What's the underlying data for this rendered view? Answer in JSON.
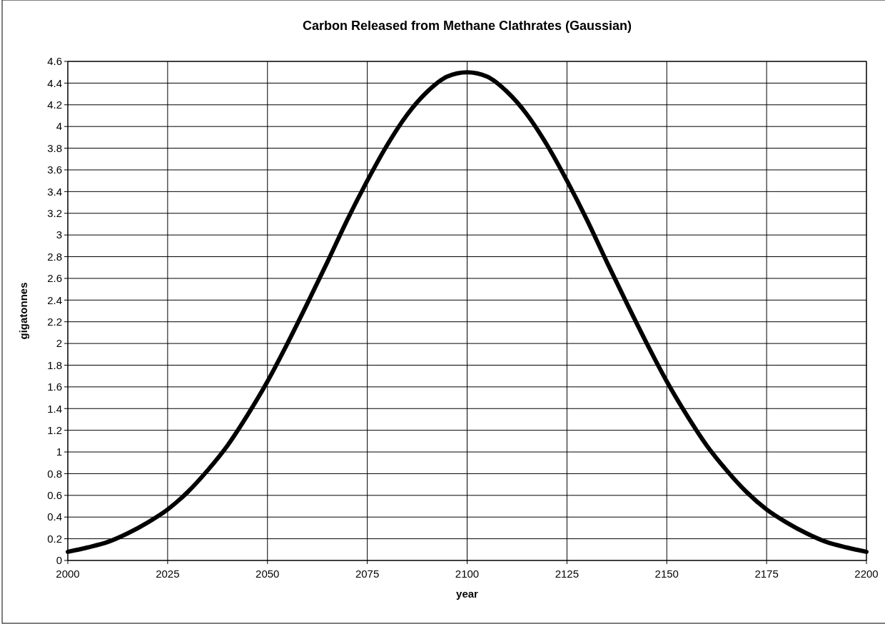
{
  "chart_data": {
    "type": "line",
    "title": "Carbon Released from Methane Clathrates (Gaussian)",
    "xlabel": "year",
    "ylabel": "gigatonnes",
    "x": [
      2000,
      2005,
      2010,
      2015,
      2020,
      2025,
      2030,
      2035,
      2040,
      2045,
      2050,
      2055,
      2060,
      2065,
      2070,
      2075,
      2080,
      2085,
      2090,
      2095,
      2100,
      2105,
      2110,
      2115,
      2120,
      2125,
      2130,
      2135,
      2140,
      2145,
      2150,
      2155,
      2160,
      2165,
      2170,
      2175,
      2180,
      2185,
      2190,
      2195,
      2200
    ],
    "series": [
      {
        "color": "#000000",
        "values": [
          0.08,
          0.12,
          0.17,
          0.25,
          0.35,
          0.47,
          0.63,
          0.83,
          1.06,
          1.34,
          1.65,
          2.0,
          2.37,
          2.75,
          3.14,
          3.5,
          3.83,
          4.11,
          4.32,
          4.46,
          4.5,
          4.46,
          4.32,
          4.11,
          3.83,
          3.5,
          3.14,
          2.75,
          2.37,
          2.0,
          1.65,
          1.34,
          1.06,
          0.83,
          0.63,
          0.47,
          0.35,
          0.25,
          0.17,
          0.12,
          0.08
        ]
      }
    ],
    "xlim": [
      2000,
      2200
    ],
    "xticks": [
      2000,
      2025,
      2050,
      2075,
      2100,
      2125,
      2150,
      2175,
      2200
    ],
    "ylim": [
      0,
      4.6
    ],
    "yticks": [
      0,
      0.2,
      0.4,
      0.6,
      0.8,
      1,
      1.2,
      1.4,
      1.6,
      1.8,
      2,
      2.2,
      2.4,
      2.6,
      2.8,
      3,
      3.2,
      3.4,
      3.6,
      3.8,
      4,
      4.2,
      4.4,
      4.6
    ],
    "grid": true,
    "marker": "none",
    "line_style": "solid"
  }
}
